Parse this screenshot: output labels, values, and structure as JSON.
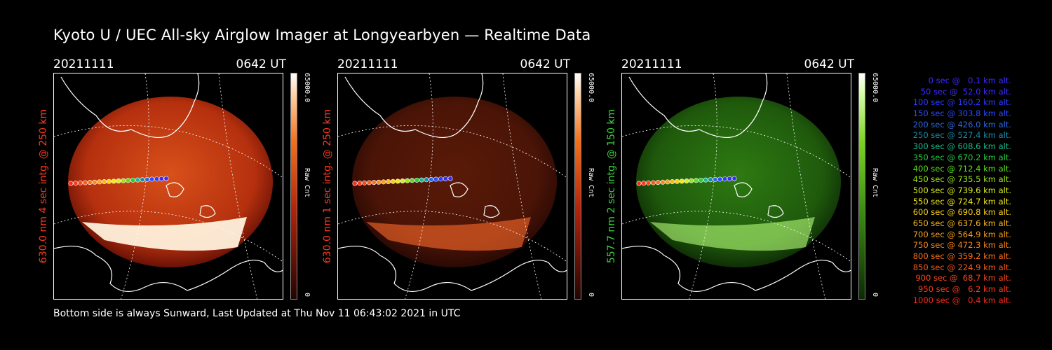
{
  "title": "Kyoto U / UEC All-sky Airglow Imager at Longyearbyen — Realtime Data",
  "footer": "Bottom side is always Sunward, Last Updated at Thu Nov 11 06:43:02 2021 in UTC",
  "panels": [
    {
      "date": "20211111",
      "time": "0642 UT",
      "ylabel": "630.0 nm 4 sec intg. @ 250 km",
      "label_color": "#ff3a1e",
      "colorbar_max": "65000.0",
      "colorbar_unit": "Raw Cnt",
      "colorbar_min": "0",
      "scheme": "red",
      "brightness": "high"
    },
    {
      "date": "20211111",
      "time": "0642 UT",
      "ylabel": "630.0 nm 1 sec intg. @ 250 km",
      "label_color": "#ff3a1e",
      "colorbar_max": "65000.0",
      "colorbar_unit": "Raw Cnt",
      "colorbar_min": "0",
      "scheme": "red",
      "brightness": "low"
    },
    {
      "date": "20211111",
      "time": "0642 UT",
      "ylabel": "557.7 nm 2 sec intg. @ 150 km",
      "label_color": "#3cd43c",
      "colorbar_max": "65000.0",
      "colorbar_unit": "Raw Cnt",
      "colorbar_min": "0",
      "scheme": "green",
      "brightness": "medium"
    }
  ],
  "legend": [
    {
      "text": "0 sec @   0.1 km alt.",
      "color": "#3a2aff"
    },
    {
      "text": "50 sec @  52.0 km alt.",
      "color": "#3a2aff"
    },
    {
      "text": "100 sec @ 160.2 km alt.",
      "color": "#2a3aff"
    },
    {
      "text": "150 sec @ 303.8 km alt.",
      "color": "#2a4aff"
    },
    {
      "text": "200 sec @ 426.0 km alt.",
      "color": "#2a6adf"
    },
    {
      "text": "250 sec @ 527.4 km alt.",
      "color": "#1a8aa8"
    },
    {
      "text": "300 sec @ 608.6 km alt.",
      "color": "#1ab88a"
    },
    {
      "text": "350 sec @ 670.2 km alt.",
      "color": "#22d03a"
    },
    {
      "text": "400 sec @ 712.4 km alt.",
      "color": "#5ae01a"
    },
    {
      "text": "450 sec @ 735.5 km alt.",
      "color": "#9ae81a"
    },
    {
      "text": "500 sec @ 739.6 km alt.",
      "color": "#d8f01a"
    },
    {
      "text": "550 sec @ 724.7 km alt.",
      "color": "#f0e81a"
    },
    {
      "text": "600 sec @ 690.8 km alt.",
      "color": "#f8d01a"
    },
    {
      "text": "650 sec @ 637.6 km alt.",
      "color": "#f8b81a"
    },
    {
      "text": "700 sec @ 564.9 km alt.",
      "color": "#f8a01a"
    },
    {
      "text": "750 sec @ 472.3 km alt.",
      "color": "#f8881a"
    },
    {
      "text": "800 sec @ 359.2 km alt.",
      "color": "#f8701a"
    },
    {
      "text": "850 sec @ 224.9 km alt.",
      "color": "#f85a1a"
    },
    {
      "text": "900 sec @  68.7 km alt.",
      "color": "#f8461a"
    },
    {
      "text": "950 sec @   6.2 km alt.",
      "color": "#f8381a"
    },
    {
      "text": "1000 sec @   0.4 km alt.",
      "color": "#f82a1a"
    }
  ]
}
